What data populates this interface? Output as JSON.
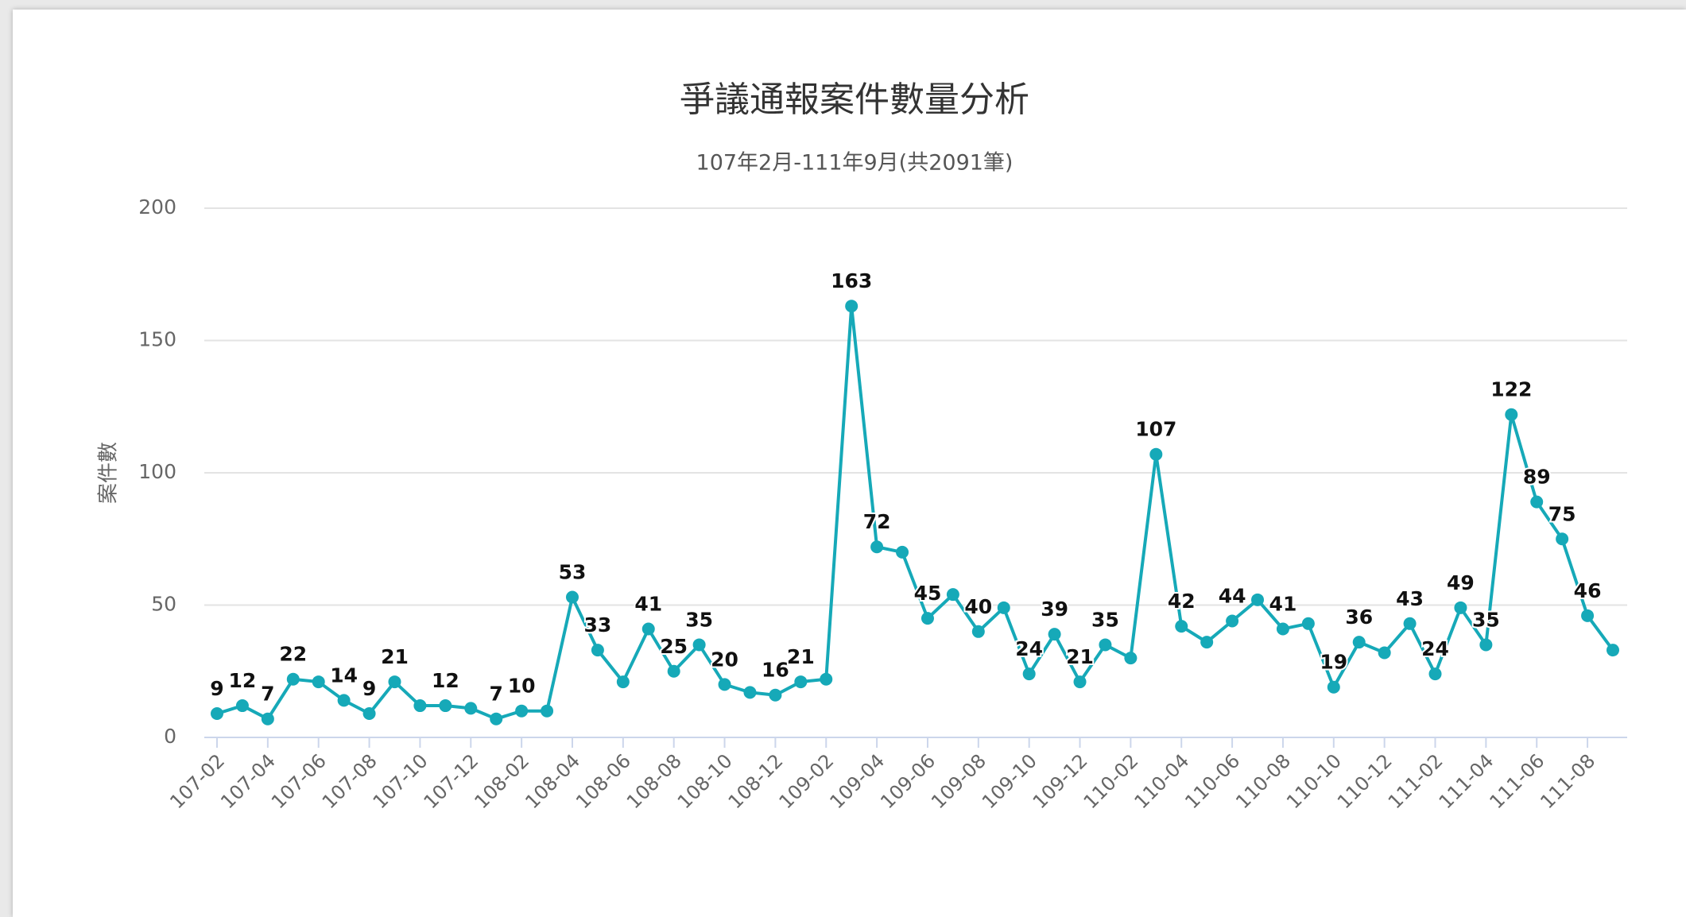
{
  "chart_data": {
    "type": "line",
    "title": "爭議通報案件數量分析",
    "subtitle": "107年2月-111年9月(共2091筆)",
    "y_axis_label": "案件數",
    "categories": [
      "107-02",
      null,
      "107-04",
      null,
      "107-06",
      null,
      "107-08",
      null,
      "107-10",
      null,
      "107-12",
      null,
      "108-02",
      null,
      "108-04",
      null,
      "108-06",
      null,
      "108-08",
      null,
      "108-10",
      null,
      "108-12",
      null,
      "109-02",
      null,
      "109-04",
      null,
      "109-06",
      null,
      "109-08",
      null,
      "109-10",
      null,
      "109-12",
      null,
      "110-02",
      null,
      "110-04",
      null,
      "110-06",
      null,
      "110-08",
      null,
      "110-10",
      null,
      "110-12",
      null,
      "111-02",
      null,
      "111-04",
      null,
      "111-06",
      null,
      "111-08",
      null
    ],
    "series": [
      {
        "name": "案件數",
        "color": "#16a9b8",
        "values": [
          9,
          12,
          7,
          22,
          21,
          14,
          9,
          21,
          12,
          12,
          11,
          7,
          10,
          10,
          53,
          33,
          21,
          41,
          25,
          35,
          20,
          17,
          16,
          21,
          22,
          163,
          72,
          70,
          45,
          54,
          40,
          49,
          24,
          39,
          21,
          35,
          30,
          107,
          42,
          36,
          44,
          52,
          41,
          43,
          19,
          36,
          32,
          43,
          24,
          49,
          35,
          122,
          89,
          75,
          46,
          33
        ],
        "value_labels": [
          "9",
          "12",
          "7",
          "22",
          null,
          "14",
          "9",
          "21",
          null,
          "12",
          null,
          "7",
          "10",
          null,
          "53",
          "33",
          null,
          "41",
          "25",
          "35",
          "20",
          null,
          "16",
          "21",
          null,
          "163",
          "72",
          null,
          "45",
          null,
          "40",
          null,
          "24",
          "39",
          "21",
          "35",
          null,
          "107",
          "42",
          null,
          "44",
          null,
          "41",
          null,
          "19",
          "36",
          null,
          "43",
          "24",
          "49",
          "35",
          "122",
          "89",
          "75",
          "46",
          null
        ]
      }
    ],
    "ylim": [
      0,
      200
    ],
    "yticks": [
      0,
      50,
      100,
      150,
      200
    ],
    "grid": true
  }
}
